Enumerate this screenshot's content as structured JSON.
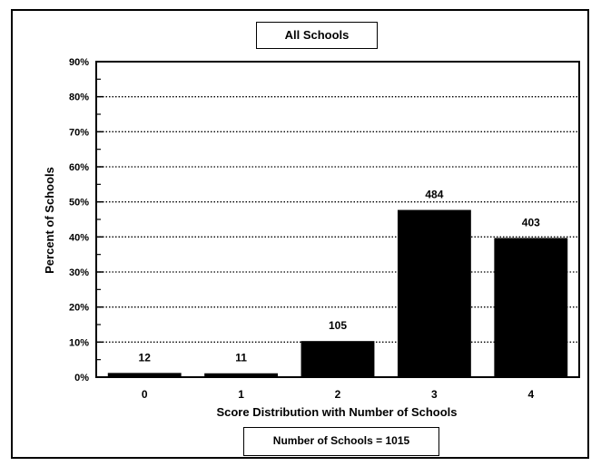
{
  "chart_data": {
    "type": "bar",
    "title": "All Schools",
    "xlabel": "Score Distribution with Number of Schools",
    "ylabel": "Percent of Schools",
    "categories": [
      "0",
      "1",
      "2",
      "3",
      "4"
    ],
    "values": [
      1.2,
      1.1,
      10.3,
      47.7,
      39.7
    ],
    "data_labels": [
      "12",
      "11",
      "105",
      "484",
      "403"
    ],
    "ylim": [
      0,
      90
    ],
    "yticks": [
      "0%",
      "10%",
      "20%",
      "30%",
      "40%",
      "50%",
      "60%",
      "70%",
      "80%",
      "90%"
    ],
    "grid": "horizontal dotted",
    "bar_color": "#000000",
    "footnote": "Number of Schools = 1015"
  }
}
